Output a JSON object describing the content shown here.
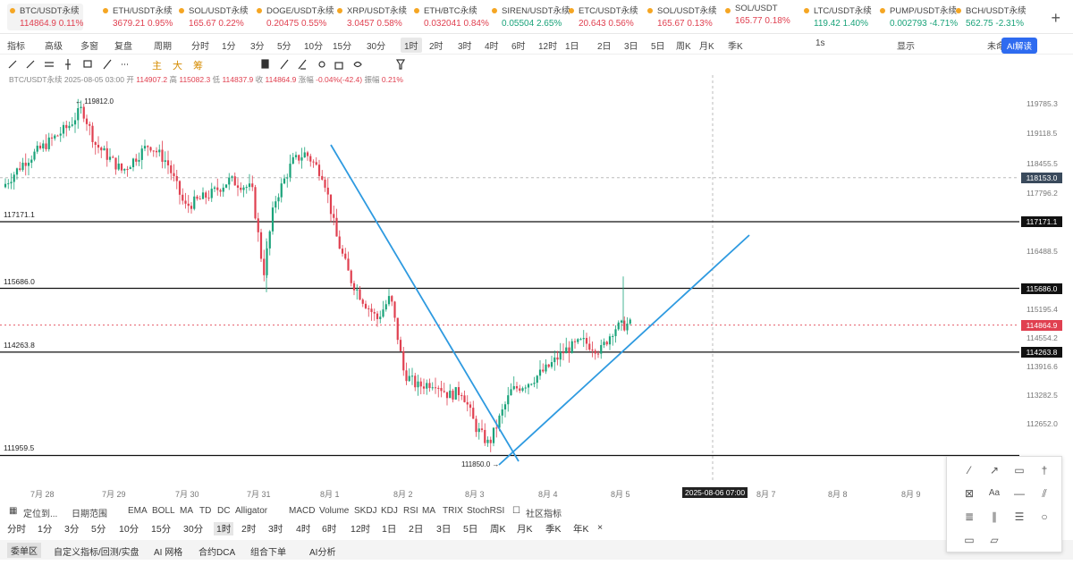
{
  "tickers": [
    {
      "name": "BTC/USDT永续",
      "price": "114864.9",
      "change": "0.11%",
      "dir": "dn",
      "active": true
    },
    {
      "name": "ETH/USDT永续",
      "price": "3679.21",
      "change": "0.95%",
      "dir": "dn"
    },
    {
      "name": "SOL/USDT永续",
      "price": "165.67",
      "change": "0.22%",
      "dir": "dn"
    },
    {
      "name": "DOGE/USDT永续",
      "price": "0.20475",
      "change": "0.55%",
      "dir": "dn"
    },
    {
      "name": "XRP/USDT永续",
      "price": "3.0457",
      "change": "0.58%",
      "dir": "dn"
    },
    {
      "name": "ETH/BTC永续",
      "price": "0.032041",
      "change": "0.84%",
      "dir": "dn"
    },
    {
      "name": "SIREN/USDT永续",
      "price": "0.05504",
      "change": "2.65%",
      "dir": "up"
    },
    {
      "name": "ETC/USDT永续",
      "price": "20.643",
      "change": "0.56%",
      "dir": "dn"
    },
    {
      "name": "SOL/USDT永续",
      "price": "165.67",
      "change": "0.13%",
      "dir": "dn"
    },
    {
      "name": "SOL/USDT",
      "price": "165.77",
      "change": "0.18%",
      "dir": "dn"
    },
    {
      "name": "LTC/USDT永续",
      "price": "119.42",
      "change": "1.40%",
      "dir": "up"
    },
    {
      "name": "PUMP/USDT永续",
      "price": "0.002793",
      "change": "-4.71%",
      "dir": "up"
    },
    {
      "name": "BCH/USDT永续",
      "price": "562.75",
      "change": "-2.31%",
      "dir": "up"
    }
  ],
  "toolbar1": {
    "items": [
      "指标",
      "高级",
      "多窗",
      "复盘",
      "周期",
      "分时",
      "1分",
      "3分",
      "5分",
      "10分",
      "15分",
      "30分",
      "1时",
      "2时",
      "3时",
      "4时",
      "6时",
      "12时",
      "1日",
      "2日",
      "3日",
      "5日",
      "周K",
      "月K",
      "季K"
    ],
    "selected": "1时",
    "right_items": [
      "1s",
      "显示",
      "未命名"
    ],
    "ai_label": "AI解读"
  },
  "toolbar2": {
    "labels": [
      "主",
      "大",
      "筹"
    ]
  },
  "ohlc": {
    "symbol_time": "BTC/USDT永续  2025-08-05 03:00",
    "open_label": "开",
    "open": "114907.2",
    "high_label": "高",
    "high": "115082.3",
    "low_label": "低",
    "low": "114837.9",
    "close_label": "收",
    "close": "114864.9",
    "change_label": "涨幅",
    "change": "-0.04%(-42.4)",
    "amp_label": "振幅",
    "amp": "0.21%"
  },
  "chart_data": {
    "type": "candlestick",
    "x_labels": [
      "7月 28",
      "7月 29",
      "7月 30",
      "7月 31",
      "8月 1",
      "8月 2",
      "8月 3",
      "8月 4",
      "8月 5",
      "8月 7",
      "8月 8",
      "8月 9"
    ],
    "y_ticks": [
      "119785.3",
      "119118.5",
      "118455.5",
      "117796.2",
      "116488.5",
      "115195.4",
      "114554.2",
      "113916.6",
      "113282.5",
      "112652.0"
    ],
    "ylim": [
      111750,
      120200
    ],
    "high_mark": "119812.0",
    "low_mark": "111850.0",
    "horizontal_levels": [
      "117171.1",
      "115686.0",
      "114263.8",
      "111959.5"
    ],
    "crosshair_price": "118153.0",
    "last_price": "114864.9",
    "crosshair_time": "2025-08-06 07:00"
  },
  "indicators": {
    "locate": "定位到...",
    "range": "日期范围",
    "main": [
      "EMA",
      "BOLL",
      "MA",
      "TD",
      "DC",
      "Alligator"
    ],
    "sub": [
      "MACD",
      "Volume",
      "SKDJ",
      "KDJ",
      "RSI",
      "MA",
      "TRIX",
      "StochRSI"
    ],
    "community": "社区指标"
  },
  "timeframes": {
    "items": [
      "分时",
      "1分",
      "3分",
      "5分",
      "10分",
      "15分",
      "30分",
      "1时",
      "2时",
      "3时",
      "4时",
      "6时",
      "12时",
      "1日",
      "2日",
      "3日",
      "5日",
      "周K",
      "月K",
      "季K",
      "年K"
    ],
    "selected": "1时",
    "close": "×"
  },
  "bottom_tabs": {
    "items": [
      "委单区",
      "自定义指标/回测/实盘",
      "AI 网格",
      "合约DCA",
      "组合下单",
      "AI分析"
    ],
    "selected": "委单区"
  },
  "colors": {
    "up": "#1aa37a",
    "down": "#e04050",
    "trendline": "#2e9ae0",
    "accent": "#2e6bf0"
  }
}
